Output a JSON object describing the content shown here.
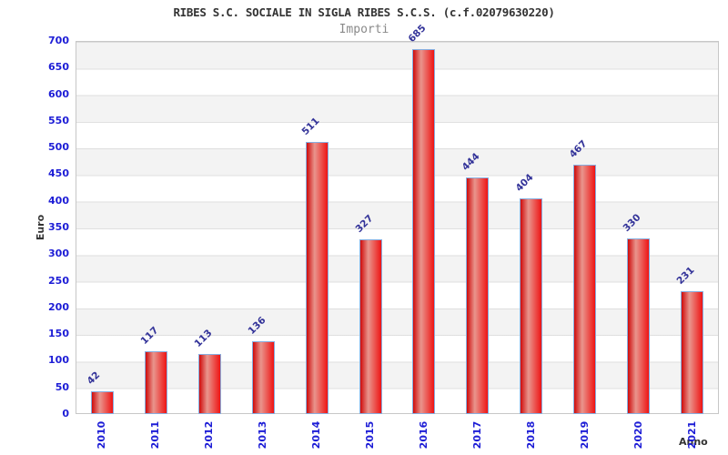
{
  "chart_data": {
    "type": "bar",
    "title": "RIBES S.C. SOCIALE IN SIGLA RIBES S.C.S. (c.f.02079630220)",
    "subtitle": "Importi",
    "xlabel": "Anno",
    "ylabel": "Euro",
    "categories": [
      "2010",
      "2011",
      "2012",
      "2013",
      "2014",
      "2015",
      "2016",
      "2017",
      "2018",
      "2019",
      "2020",
      "2021"
    ],
    "values": [
      42,
      117,
      113,
      136,
      511,
      327,
      685,
      444,
      404,
      467,
      330,
      231
    ],
    "ylim": [
      0,
      700
    ],
    "ytick_step": 50,
    "grid": "horizontal-bands",
    "legend": "none",
    "value_labels": "above-bars-rotated-45",
    "colors": {
      "bar_dark": "#cf0b0b",
      "bar_highlight": "#e9958d",
      "bar_main": "#ee1414",
      "bar_border": "#86aee0",
      "tick_label": "#1d1dd6",
      "value_label": "#333399",
      "band_gray": "#f3f3f3",
      "band_white": "#ffffff",
      "title_color": "#333333",
      "subtitle_color": "#8a8a8a"
    }
  }
}
